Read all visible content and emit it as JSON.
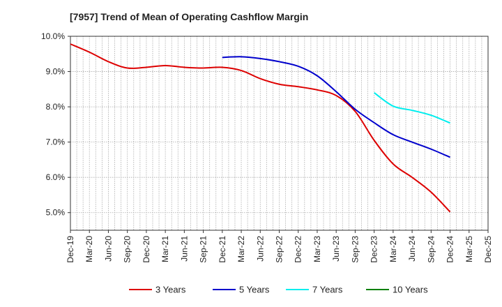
{
  "chart_data": {
    "type": "line",
    "title": "[7957]  Trend of Mean of Operating Cashflow Margin",
    "xlabel": "",
    "ylabel": "",
    "x": [
      "Dec-19",
      "Mar-20",
      "Jun-20",
      "Sep-20",
      "Dec-20",
      "Mar-21",
      "Jun-21",
      "Sep-21",
      "Dec-21",
      "Mar-22",
      "Jun-22",
      "Sep-22",
      "Dec-22",
      "Mar-23",
      "Jun-23",
      "Sep-23",
      "Dec-23",
      "Mar-24",
      "Jun-24",
      "Sep-24",
      "Dec-24",
      "Mar-25",
      "Dec-25"
    ],
    "ylim": [
      4.5,
      10.0
    ],
    "yticks": [
      "5.0%",
      "6.0%",
      "7.0%",
      "8.0%",
      "9.0%",
      "10.0%"
    ],
    "grid": true,
    "legend_position": "bottom",
    "series": [
      {
        "name": "3 Years",
        "color": "#dd0000",
        "values": [
          9.78,
          9.55,
          9.28,
          9.1,
          9.12,
          9.17,
          9.12,
          9.1,
          9.12,
          9.03,
          8.8,
          8.64,
          8.57,
          8.48,
          8.32,
          7.87,
          7.05,
          6.38,
          6.0,
          5.58,
          5.02,
          null,
          null
        ]
      },
      {
        "name": "5 Years",
        "color": "#0000cc",
        "values": [
          null,
          null,
          null,
          null,
          null,
          null,
          null,
          null,
          9.4,
          9.42,
          9.37,
          9.28,
          9.15,
          8.88,
          8.43,
          7.93,
          7.55,
          7.21,
          7.0,
          6.8,
          6.57,
          null,
          null
        ]
      },
      {
        "name": "7 Years",
        "color": "#00eeee",
        "values": [
          null,
          null,
          null,
          null,
          null,
          null,
          null,
          null,
          null,
          null,
          null,
          null,
          null,
          null,
          null,
          null,
          8.4,
          8.02,
          7.9,
          7.76,
          7.54,
          null,
          null
        ]
      },
      {
        "name": "10 Years",
        "color": "#008000",
        "values": [
          null,
          null,
          null,
          null,
          null,
          null,
          null,
          null,
          null,
          null,
          null,
          null,
          null,
          null,
          null,
          null,
          null,
          null,
          null,
          null,
          null,
          null,
          null
        ]
      }
    ]
  }
}
